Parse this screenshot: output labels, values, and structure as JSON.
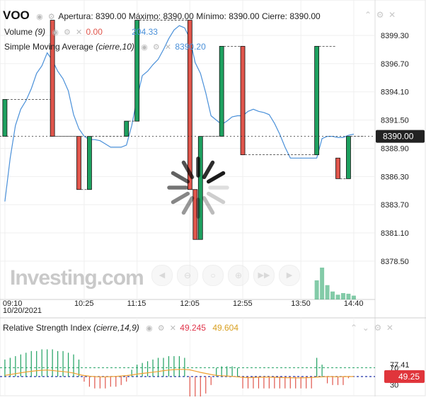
{
  "symbol": "VOO",
  "ohlc": {
    "open_label": "Apertura:",
    "open": "8390.00",
    "high_label": "Máximo:",
    "high": "8390.00",
    "low_label": "Mínimo:",
    "low": "8390.00",
    "close_label": "Cierre:",
    "close": "8390.00"
  },
  "volume_legend": {
    "name": "Volume",
    "param": "(9)",
    "v1": "0.00",
    "v2": "204.33"
  },
  "sma_legend": {
    "name": "Simple Moving Average",
    "param": "(cierre,10)",
    "value": "8390.20"
  },
  "rsi_legend": {
    "name": "Relative Strength Index",
    "param": "(cierre,14,9)",
    "v1": "49.245",
    "v2": "49.604"
  },
  "watermark": "Investing.com",
  "colors": {
    "up": "#1ea160",
    "down": "#e0554b",
    "sma": "#4a90d9",
    "rsi_line": "#f0a030",
    "price_badge": "#222222",
    "rsi_badge": "#e0353b"
  },
  "chart_data": [
    {
      "type": "candlestick",
      "title": "VOO",
      "x": [
        "09:10",
        "09:15",
        "09:20",
        "09:25",
        "09:30",
        "09:35",
        "09:40",
        "09:45",
        "09:50",
        "09:55",
        "10:00",
        "10:05",
        "10:10",
        "10:15",
        "10:20",
        "10:25",
        "10:30",
        "10:35",
        "10:40",
        "10:45",
        "10:50",
        "10:55",
        "11:00",
        "11:05",
        "11:10",
        "11:15",
        "11:20",
        "11:25",
        "11:30",
        "11:35",
        "11:40",
        "11:45",
        "11:50",
        "11:55",
        "12:00",
        "12:05",
        "12:10",
        "12:15",
        "12:20",
        "12:25",
        "12:30",
        "12:35",
        "12:40",
        "12:45",
        "12:50",
        "12:55",
        "13:00",
        "13:05",
        "13:10",
        "13:15",
        "13:20",
        "13:25",
        "13:30",
        "13:35",
        "13:40",
        "13:45",
        "13:50",
        "13:55",
        "14:00",
        "14:05",
        "14:10",
        "14:15",
        "14:20",
        "14:25",
        "14:30",
        "14:35",
        "14:40"
      ],
      "candles": [
        {
          "i": 0,
          "o": 8390.0,
          "h": 8393.4,
          "l": 8390.0,
          "c": 8393.4
        },
        {
          "i": 9,
          "o": 8400.7,
          "h": 8400.7,
          "l": 8390.0,
          "c": 8390.0
        },
        {
          "i": 14,
          "o": 8390.0,
          "h": 8390.0,
          "l": 8385.1,
          "c": 8385.1
        },
        {
          "i": 16,
          "o": 8385.1,
          "h": 8390.0,
          "l": 8385.1,
          "c": 8390.0
        },
        {
          "i": 23,
          "o": 8390.0,
          "h": 8391.4,
          "l": 8390.0,
          "c": 8391.4
        },
        {
          "i": 25,
          "o": 8391.4,
          "h": 8400.7,
          "l": 8391.4,
          "c": 8400.7
        },
        {
          "i": 35,
          "o": 8400.7,
          "h": 8400.7,
          "l": 8385.1,
          "c": 8385.1
        },
        {
          "i": 36,
          "o": 8385.1,
          "h": 8385.1,
          "l": 8380.5,
          "c": 8380.5
        },
        {
          "i": 37,
          "o": 8380.5,
          "h": 8390.0,
          "l": 8380.5,
          "c": 8390.0
        },
        {
          "i": 41,
          "o": 8390.0,
          "h": 8398.3,
          "l": 8390.0,
          "c": 8398.3
        },
        {
          "i": 45,
          "o": 8398.3,
          "h": 8398.3,
          "l": 8388.3,
          "c": 8388.3
        },
        {
          "i": 59,
          "o": 8388.3,
          "h": 8398.3,
          "l": 8388.3,
          "c": 8398.3
        },
        {
          "i": 63,
          "o": 8388.0,
          "h": 8388.0,
          "l": 8386.1,
          "c": 8386.1
        },
        {
          "i": 65,
          "o": 8386.1,
          "h": 8390.0,
          "l": 8386.1,
          "c": 8390.0
        }
      ],
      "sma": [
        [
          0,
          8384.0
        ],
        [
          1,
          8388.0
        ],
        [
          2,
          8391.0
        ],
        [
          3,
          8392.5
        ],
        [
          4,
          8393.3
        ],
        [
          5,
          8394.4
        ],
        [
          6,
          8395.8
        ],
        [
          7,
          8396.5
        ],
        [
          8,
          8397.7
        ],
        [
          9,
          8397.0
        ],
        [
          10,
          8396.0
        ],
        [
          11,
          8395.3
        ],
        [
          12,
          8394.2
        ],
        [
          13,
          8392.0
        ],
        [
          14,
          8390.7
        ],
        [
          15,
          8390.0
        ],
        [
          16,
          8389.7
        ],
        [
          17,
          8389.7
        ],
        [
          18,
          8389.6
        ],
        [
          19,
          8389.3
        ],
        [
          20,
          8389.0
        ],
        [
          21,
          8389.0
        ],
        [
          22,
          8389.0
        ],
        [
          23,
          8389.2
        ],
        [
          24,
          8391.0
        ],
        [
          25,
          8393.5
        ],
        [
          26,
          8395.6
        ],
        [
          27,
          8396.0
        ],
        [
          28,
          8396.6
        ],
        [
          29,
          8397.1
        ],
        [
          30,
          8398.0
        ],
        [
          31,
          8399.0
        ],
        [
          32,
          8399.8
        ],
        [
          33,
          8400.2
        ],
        [
          34,
          8400.0
        ],
        [
          35,
          8399.0
        ],
        [
          36,
          8396.8
        ],
        [
          37,
          8395.8
        ],
        [
          38,
          8394.0
        ],
        [
          39,
          8391.9
        ],
        [
          40,
          8391.5
        ],
        [
          41,
          8391.1
        ],
        [
          42,
          8391.4
        ],
        [
          43,
          8391.8
        ],
        [
          44,
          8391.9
        ],
        [
          45,
          8391.9
        ],
        [
          46,
          8392.3
        ],
        [
          47,
          8392.5
        ],
        [
          48,
          8392.3
        ],
        [
          49,
          8392.2
        ],
        [
          50,
          8392.0
        ],
        [
          51,
          8391.2
        ],
        [
          52,
          8390.2
        ],
        [
          53,
          8389.0
        ],
        [
          54,
          8388.0
        ],
        [
          55,
          8388.0
        ],
        [
          56,
          8388.0
        ],
        [
          57,
          8388.0
        ],
        [
          58,
          8388.0
        ],
        [
          59,
          8388.0
        ],
        [
          60,
          8389.8
        ],
        [
          61,
          8390.0
        ],
        [
          62,
          8390.0
        ],
        [
          63,
          8389.9
        ],
        [
          64,
          8389.9
        ],
        [
          65,
          8390.1
        ],
        [
          66,
          8390.2
        ]
      ],
      "current_price": "8390.00",
      "y_ticks": [
        "8399.30",
        "8396.70",
        "8394.10",
        "8391.50",
        "8388.90",
        "8386.30",
        "8383.70",
        "8381.10",
        "8378.50"
      ],
      "ylim": [
        8376.0,
        8402.4
      ],
      "x_ticks": [
        {
          "i": 0,
          "label": "09:10"
        },
        {
          "i": 15,
          "label": "10:25"
        },
        {
          "i": 25,
          "label": "11:15"
        },
        {
          "i": 35,
          "label": "12:05"
        },
        {
          "i": 45,
          "label": "12:55"
        },
        {
          "i": 56,
          "label": "13:50"
        },
        {
          "i": 66,
          "label": "14:40"
        }
      ],
      "date_label": "10/20/2021",
      "volume": [
        [
          59,
          0.6
        ],
        [
          60,
          1.0
        ],
        [
          61,
          0.45
        ],
        [
          62,
          0.25
        ],
        [
          63,
          0.15
        ],
        [
          64,
          0.2
        ],
        [
          65,
          0.18
        ],
        [
          66,
          0.12
        ]
      ],
      "grid": true
    },
    {
      "type": "line",
      "title": "Relative Strength Index",
      "rsi": [
        [
          0,
          52.0
        ],
        [
          1,
          54.0
        ],
        [
          2,
          56.0
        ],
        [
          3,
          58.0
        ],
        [
          4,
          60.0
        ],
        [
          5,
          61.5
        ],
        [
          6,
          63.0
        ],
        [
          7,
          64.0
        ],
        [
          8,
          64.5
        ],
        [
          9,
          63.5
        ],
        [
          10,
          62.0
        ],
        [
          11,
          61.0
        ],
        [
          12,
          59.5
        ],
        [
          13,
          57.5
        ],
        [
          14,
          54.0
        ],
        [
          15,
          51.5
        ],
        [
          16,
          50.0
        ],
        [
          17,
          49.0
        ],
        [
          18,
          48.5
        ],
        [
          19,
          48.5
        ],
        [
          20,
          49.0
        ],
        [
          21,
          49.5
        ],
        [
          22,
          50.5
        ],
        [
          23,
          51.5
        ],
        [
          24,
          53.0
        ],
        [
          25,
          55.0
        ],
        [
          26,
          56.5
        ],
        [
          27,
          58.0
        ],
        [
          28,
          59.5
        ],
        [
          29,
          61.0
        ],
        [
          30,
          63.0
        ],
        [
          31,
          64.5
        ],
        [
          32,
          65.5
        ],
        [
          33,
          66.0
        ],
        [
          34,
          66.0
        ],
        [
          35,
          65.0
        ],
        [
          36,
          62.0
        ],
        [
          37,
          59.0
        ],
        [
          38,
          56.5
        ],
        [
          39,
          54.0
        ],
        [
          40,
          52.0
        ],
        [
          41,
          51.0
        ],
        [
          42,
          50.5
        ],
        [
          43,
          49.5
        ],
        [
          44,
          48.5
        ],
        [
          45,
          47.5
        ],
        [
          46,
          46.5
        ],
        [
          47,
          47.0
        ],
        [
          48,
          47.5
        ],
        [
          49,
          48.0
        ],
        [
          50,
          48.0
        ],
        [
          51,
          47.5
        ],
        [
          52,
          47.0
        ],
        [
          53,
          46.5
        ],
        [
          54,
          46.5
        ],
        [
          55,
          46.0
        ],
        [
          56,
          46.0
        ],
        [
          57,
          46.5
        ],
        [
          58,
          47.0
        ],
        [
          59,
          48.0
        ],
        [
          60,
          48.5
        ],
        [
          61,
          49.0
        ],
        [
          62,
          49.0
        ],
        [
          63,
          48.5
        ],
        [
          64,
          49.0
        ],
        [
          65,
          49.2
        ],
        [
          66,
          49.25
        ]
      ],
      "hist": [
        [
          0,
          10
        ],
        [
          1,
          11
        ],
        [
          2,
          12
        ],
        [
          3,
          13
        ],
        [
          4,
          14
        ],
        [
          5,
          15
        ],
        [
          6,
          15
        ],
        [
          7,
          16
        ],
        [
          8,
          16
        ],
        [
          9,
          16
        ],
        [
          10,
          15
        ],
        [
          11,
          15
        ],
        [
          12,
          14
        ],
        [
          13,
          13
        ],
        [
          14,
          10
        ],
        [
          15,
          -3
        ],
        [
          16,
          -6
        ],
        [
          17,
          -7
        ],
        [
          18,
          -7
        ],
        [
          19,
          -7
        ],
        [
          20,
          -6
        ],
        [
          21,
          -6
        ],
        [
          22,
          -5
        ],
        [
          23,
          -3
        ],
        [
          24,
          4
        ],
        [
          25,
          7
        ],
        [
          26,
          8
        ],
        [
          27,
          9
        ],
        [
          28,
          10
        ],
        [
          29,
          11
        ],
        [
          30,
          11
        ],
        [
          31,
          12
        ],
        [
          32,
          12
        ],
        [
          33,
          12
        ],
        [
          34,
          11
        ],
        [
          35,
          -12
        ],
        [
          36,
          -17
        ],
        [
          37,
          -15
        ],
        [
          38,
          -10
        ],
        [
          39,
          -5
        ],
        [
          40,
          5
        ],
        [
          41,
          6
        ],
        [
          42,
          6
        ],
        [
          43,
          6
        ],
        [
          44,
          5
        ],
        [
          45,
          -7
        ],
        [
          46,
          -7
        ],
        [
          47,
          -7
        ],
        [
          48,
          -7
        ],
        [
          49,
          -7
        ],
        [
          50,
          -7
        ],
        [
          51,
          -7
        ],
        [
          52,
          -7
        ],
        [
          53,
          -7
        ],
        [
          54,
          -7
        ],
        [
          55,
          -7
        ],
        [
          56,
          -7
        ],
        [
          57,
          -7
        ],
        [
          58,
          -7
        ],
        [
          59,
          11
        ],
        [
          60,
          7
        ],
        [
          61,
          -4
        ],
        [
          62,
          -5
        ],
        [
          63,
          -5
        ],
        [
          64,
          -5
        ],
        [
          65,
          -1
        ],
        [
          66,
          0
        ]
      ],
      "levels": [
        70,
        49.25
      ],
      "y_ticks": [
        "77.41",
        "70",
        "30"
      ],
      "current_value": "49.25",
      "ylim": [
        24.0,
        80.5
      ]
    }
  ]
}
